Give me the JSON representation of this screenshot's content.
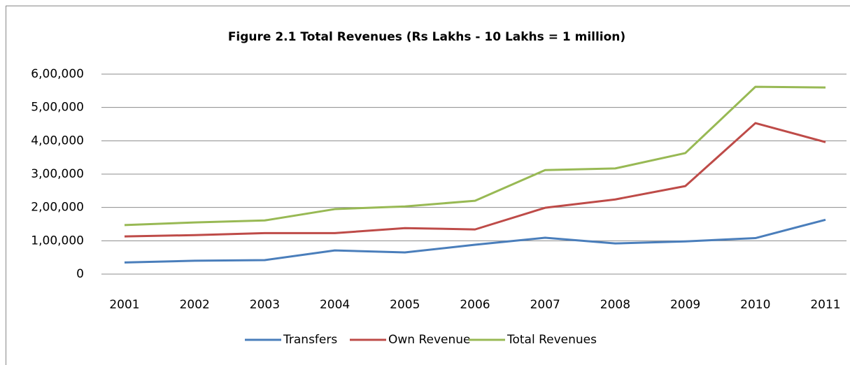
{
  "chart_data": {
    "type": "line",
    "title": "Figure 2.1 Total Revenues (Rs Lakhs - 10 Lakhs = 1 million)",
    "categories": [
      "2001",
      "2002",
      "2003",
      "2004",
      "2005",
      "2006",
      "2007",
      "2008",
      "2009",
      "2010",
      "2011"
    ],
    "series": [
      {
        "name": "Transfers",
        "color": "#4a7ebb",
        "values": [
          35000,
          40000,
          42000,
          71000,
          65000,
          88000,
          109000,
          92000,
          98000,
          108000,
          163000
        ]
      },
      {
        "name": "Own Revenue",
        "color": "#be4b48",
        "values": [
          113000,
          117000,
          123000,
          123000,
          138000,
          134000,
          199000,
          224000,
          264000,
          453000,
          396000
        ]
      },
      {
        "name": "Total Revenues",
        "color": "#98b954",
        "values": [
          147000,
          155000,
          161000,
          195000,
          203000,
          220000,
          312000,
          317000,
          363000,
          562000,
          560000
        ]
      }
    ],
    "ylim": [
      0,
      600000
    ],
    "yticks": [
      0,
      {
        "value": 100000,
        "label": "1,00,000"
      },
      {
        "value": 200000,
        "label": "2,00,000"
      },
      {
        "value": 300000,
        "label": "3,00,000"
      },
      {
        "value": 400000,
        "label": "4,00,000"
      },
      {
        "value": 500000,
        "label": "5,00,000"
      },
      {
        "value": 600000,
        "label": "6,00,000"
      }
    ],
    "grid": true,
    "legend": "bottom"
  }
}
